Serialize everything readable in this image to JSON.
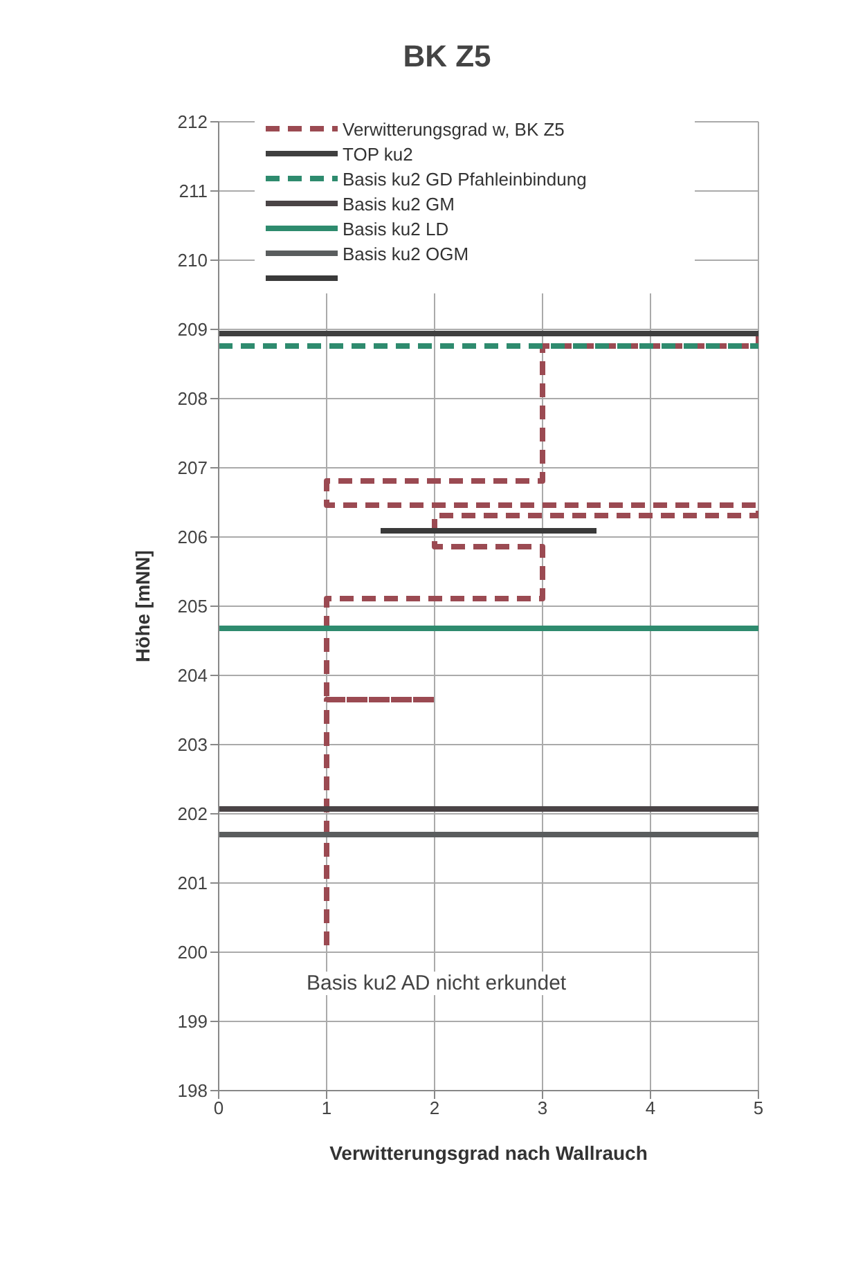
{
  "chart_data": {
    "type": "line",
    "title": "BK Z5",
    "xlabel": "Verwitterungsgrad nach Wallrauch",
    "ylabel": "Höhe [mNN]",
    "xlim": [
      0,
      5
    ],
    "xticks": [
      0,
      1,
      2,
      3,
      4,
      5
    ],
    "ylim": [
      198,
      212
    ],
    "yticks": [
      198,
      199,
      200,
      201,
      202,
      203,
      204,
      205,
      206,
      207,
      208,
      209,
      210,
      211,
      212
    ],
    "grid": true,
    "legend": "top",
    "marker": "none",
    "annotations": [
      "Basis ku2 AD nicht erkundet"
    ],
    "series": [
      {
        "name": "Verwitterungsgrad w, BK Z5",
        "color": "#9b4a52",
        "line_style": "dashed",
        "x": [
          5,
          5,
          3,
          3,
          1,
          1,
          5,
          5,
          2,
          2,
          3,
          3,
          1,
          1,
          2,
          2,
          1,
          1
        ],
        "values": [
          208.94,
          208.76,
          208.76,
          206.81,
          206.81,
          206.46,
          206.46,
          206.31,
          206.31,
          205.86,
          205.86,
          205.11,
          205.11,
          203.65,
          203.65,
          203.65,
          203.65,
          200.1
        ]
      },
      {
        "name": "TOP ku2",
        "color": "#3f3f3f",
        "line_style": "solid",
        "x": [
          0,
          5
        ],
        "values": [
          208.94,
          208.94
        ]
      },
      {
        "name": "Basis ku2 GD Pfahleinbindung",
        "color": "#2e8b6e",
        "line_style": "dashed",
        "x": [
          0,
          5
        ],
        "values": [
          208.76,
          208.76
        ]
      },
      {
        "name": "Basis ku2 GM",
        "color": "#4a4446",
        "line_style": "solid",
        "x": [
          0,
          5
        ],
        "values": [
          202.07,
          202.07
        ]
      },
      {
        "name": "Basis ku2 LD",
        "color": "#2e8b6e",
        "line_style": "solid",
        "x": [
          0,
          5
        ],
        "values": [
          204.68,
          204.68
        ]
      },
      {
        "name": "Basis ku2 OGM",
        "color": "#5a5d5e",
        "line_style": "solid",
        "x": [
          0,
          5
        ],
        "values": [
          201.7,
          201.7
        ]
      },
      {
        "color": "#3a3a3a",
        "line_style": "solid",
        "x": [
          1.5,
          3.5
        ],
        "values": [
          206.09,
          206.09
        ]
      }
    ]
  }
}
